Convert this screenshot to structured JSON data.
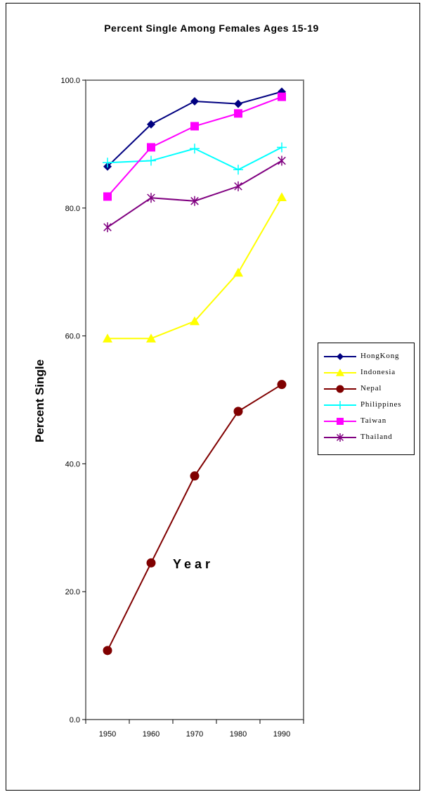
{
  "chart_data": {
    "type": "line",
    "title": "Percent Single Among Females Ages 15-19",
    "xlabel": "Year",
    "ylabel": "Percent Single",
    "x": [
      "1950",
      "1960",
      "1970",
      "1980",
      "1990"
    ],
    "yticks": [
      "0.0",
      "20.0",
      "40.0",
      "60.0",
      "80.0",
      "100.0"
    ],
    "ylim": [
      0,
      100
    ],
    "grid": false,
    "legend_position": "right",
    "series": [
      {
        "name": "HongKong",
        "values": [
          86.5,
          93.1,
          96.7,
          96.3,
          98.2
        ],
        "color": "#000080",
        "marker": "diamond"
      },
      {
        "name": "Indonesia",
        "values": [
          59.6,
          59.6,
          62.3,
          69.9,
          81.7
        ],
        "color": "#ffff00",
        "marker": "triangle"
      },
      {
        "name": "Nepal",
        "values": [
          10.8,
          24.5,
          38.1,
          48.2,
          52.4
        ],
        "color": "#800000",
        "marker": "circle"
      },
      {
        "name": "Philippines",
        "values": [
          87.1,
          87.4,
          89.3,
          86.0,
          89.5
        ],
        "color": "#00ffff",
        "marker": "plus"
      },
      {
        "name": "Taiwan",
        "values": [
          81.8,
          89.5,
          92.8,
          94.8,
          97.4
        ],
        "color": "#ff00ff",
        "marker": "square"
      },
      {
        "name": "Thailand",
        "values": [
          77.0,
          81.6,
          81.1,
          83.4,
          87.4
        ],
        "color": "#800080",
        "marker": "asterisk"
      }
    ]
  }
}
